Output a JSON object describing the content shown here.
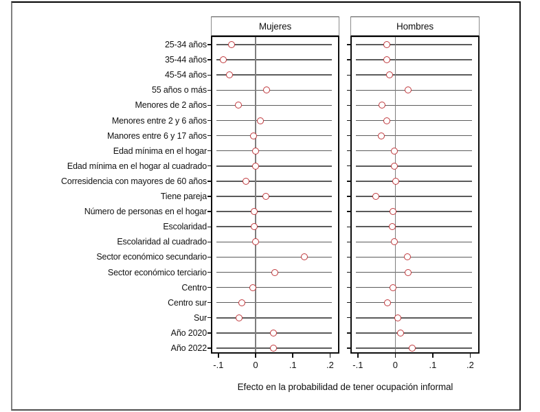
{
  "chart_data": {
    "type": "scatter",
    "subtype": "coefficient-dot-plot",
    "title": "",
    "xlabel": "Efecto en la probabilidad de tener ocupación informal",
    "ylabel": "",
    "xlim": [
      -0.12,
      0.225
    ],
    "x_ticks": [
      -0.1,
      0,
      0.1,
      0.2
    ],
    "x_tick_labels": [
      "-.1",
      "0",
      ".1",
      ".2"
    ],
    "grid": "horizontal-row-lines",
    "zero_reference_line": true,
    "legend_position": "none",
    "marker": {
      "shape": "hollow-circle",
      "color": "#bf363a",
      "fill": "#ffffff"
    },
    "colors": {
      "box_border": "#0d0d0d",
      "grid_line": "#5a5a5a",
      "zero_line": "#7d7d7d",
      "text": "#111111"
    },
    "categories": [
      "25-34 años",
      "35-44 años",
      "45-54 años",
      "55 años o más",
      "Menores de 2 años",
      "Menores entre 2 y 6 años",
      "Manores entre 6 y 17 años",
      "Edad mínima en el hogar",
      "Edad mínima en el hogar al cuadrado",
      "Corresidencia con mayores de 60 años",
      "Tiene pareja",
      "Número de personas en el hogar",
      "Escolaridad",
      "Escolaridad al cuadrado",
      "Sector económico secundario",
      "Sector económico terciario",
      "Centro",
      "Centro sur",
      "Sur",
      "Año 2020",
      "Año 2022"
    ],
    "panels": [
      {
        "title": "Mujeres",
        "values": [
          -0.064,
          -0.086,
          -0.07,
          0.029,
          -0.047,
          0.012,
          -0.005,
          -0.001,
          -0.001,
          -0.025,
          0.028,
          -0.004,
          -0.003,
          -0.001,
          0.131,
          0.051,
          -0.007,
          -0.037,
          -0.044,
          0.047,
          0.047
        ]
      },
      {
        "title": "Hombres",
        "values": [
          -0.023,
          -0.023,
          -0.016,
          0.034,
          -0.035,
          -0.023,
          -0.037,
          -0.002,
          -0.002,
          0.002,
          -0.052,
          -0.006,
          -0.008,
          -0.002,
          0.032,
          0.035,
          -0.006,
          -0.021,
          0.006,
          0.014,
          0.046
        ]
      }
    ]
  }
}
